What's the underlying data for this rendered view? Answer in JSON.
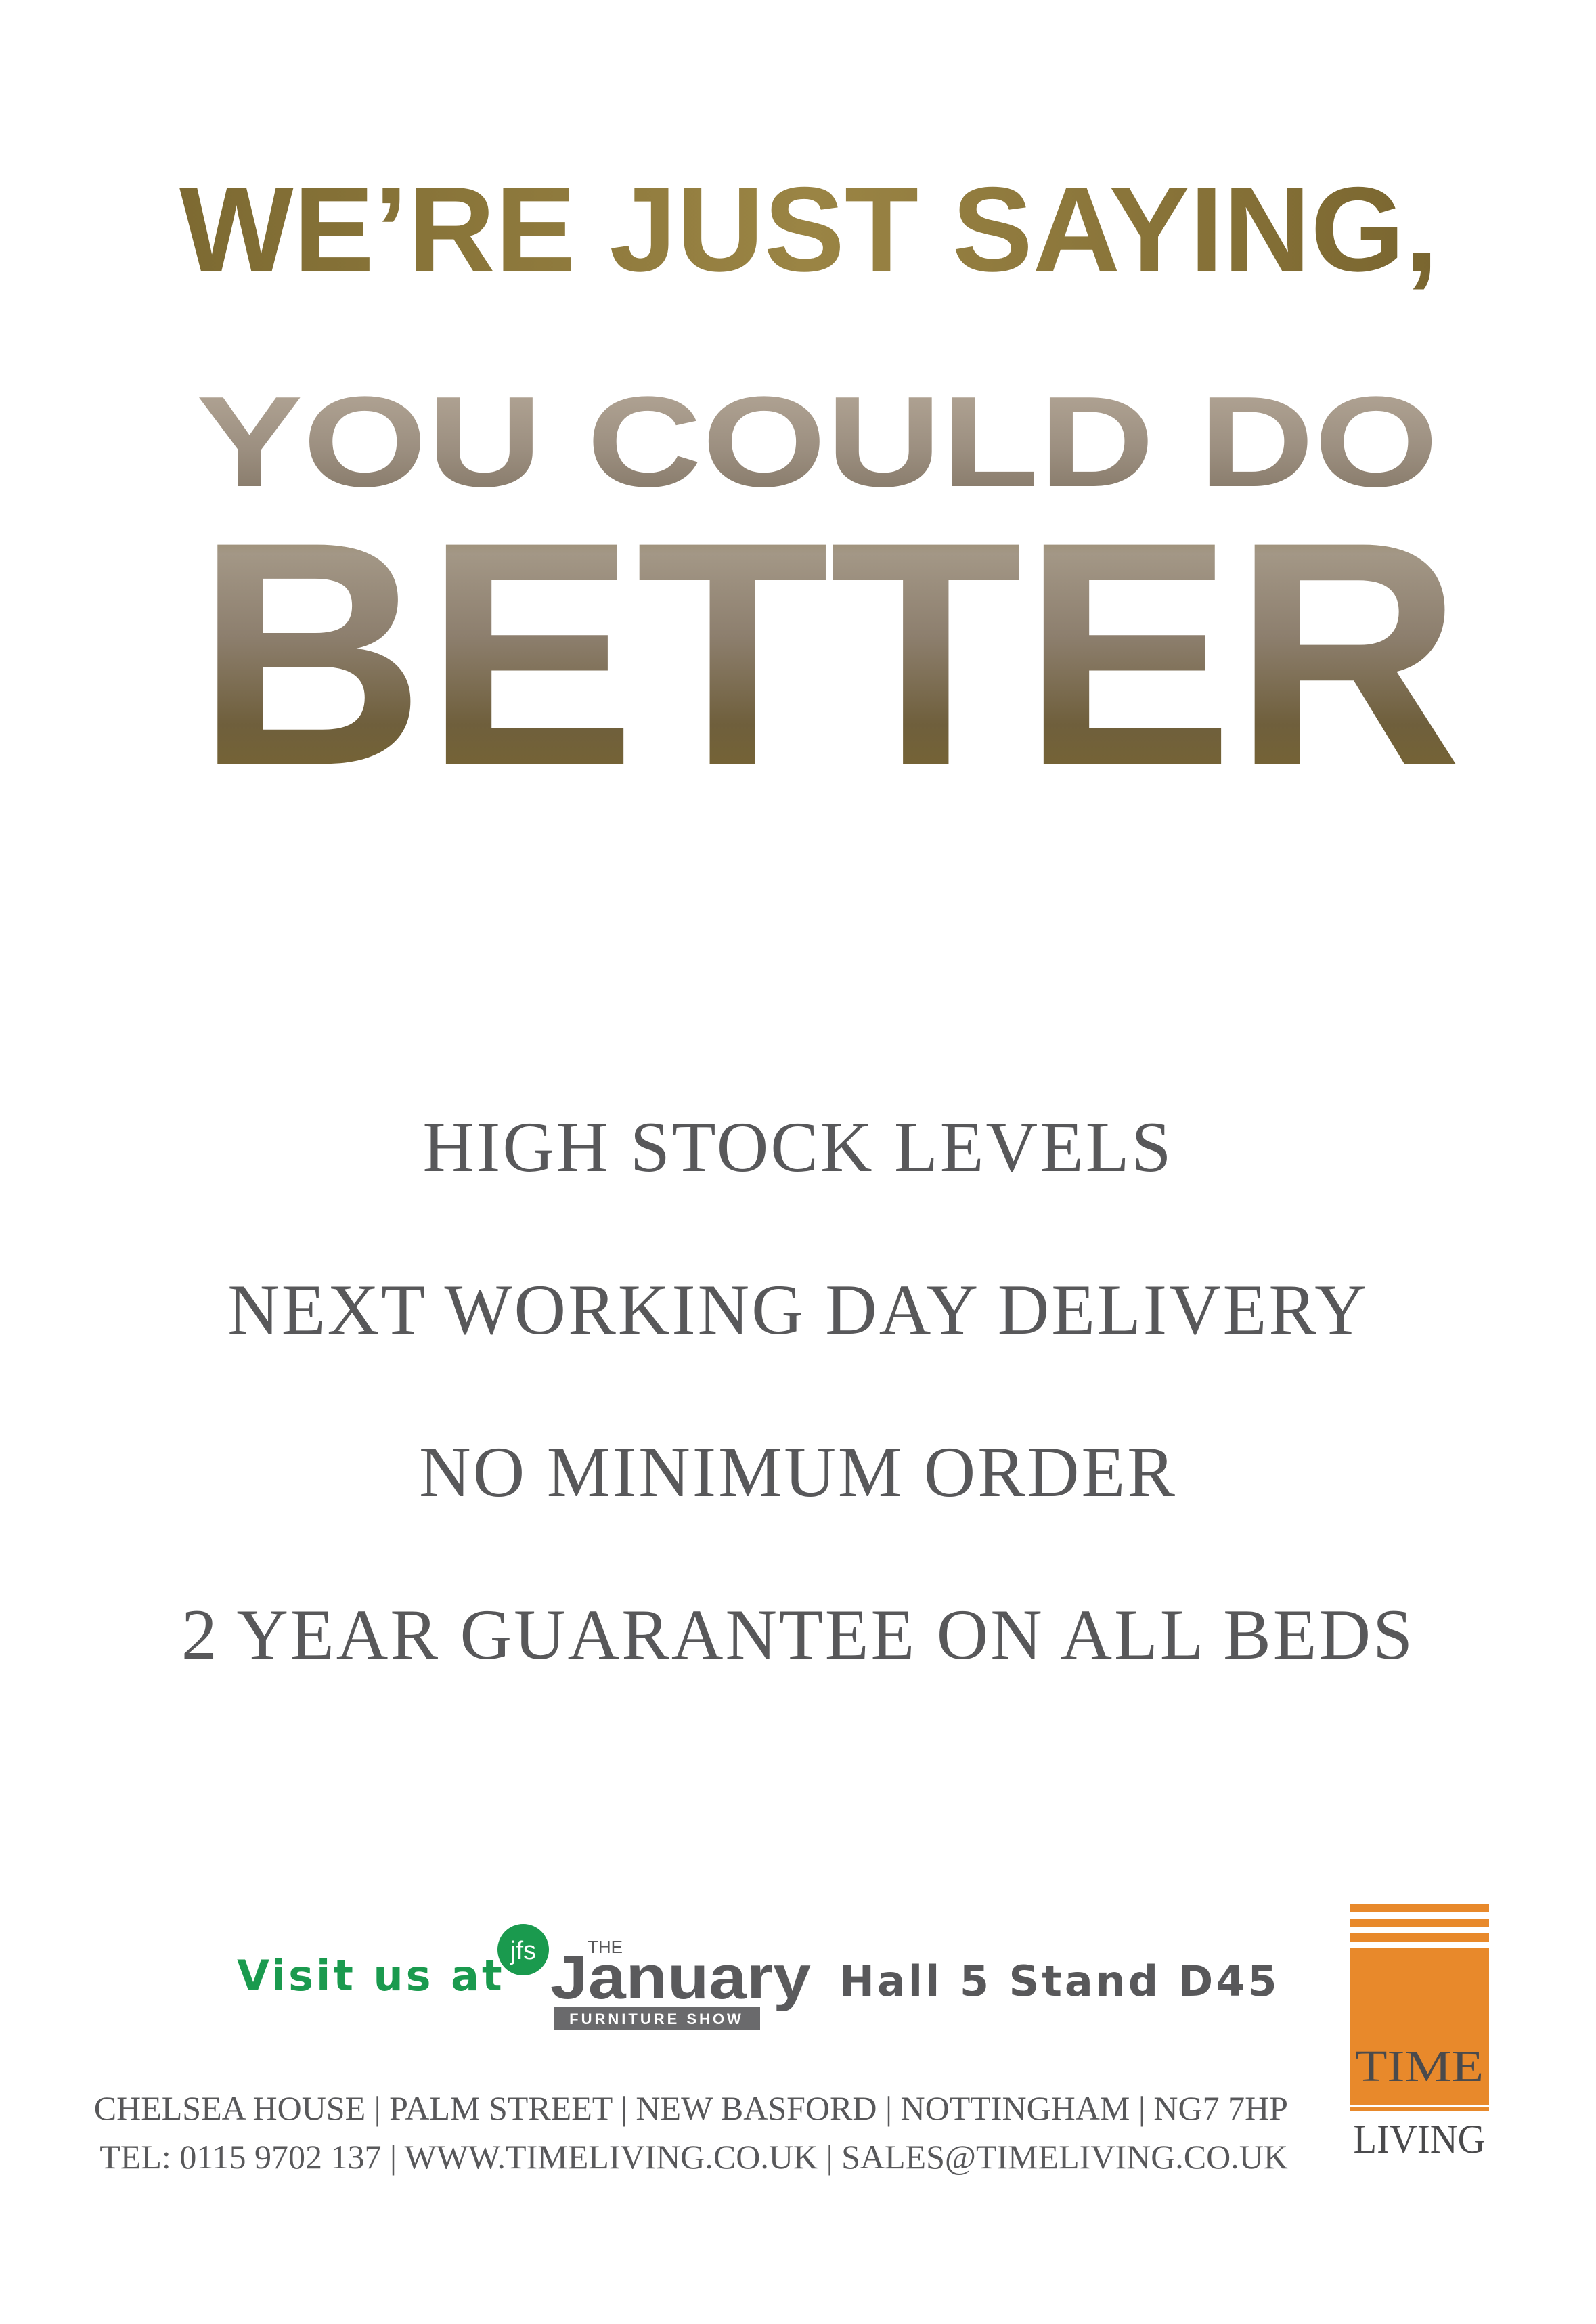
{
  "headline": {
    "line1": "WE’RE JUST SAYING,",
    "line2": "YOU COULD DO",
    "line3": "BETTER"
  },
  "features": [
    "HIGH STOCK LEVELS",
    "NEXT WORKING DAY DELIVERY",
    "NO MINIMUM ORDER",
    "2 YEAR GUARANTEE ON ALL BEDS"
  ],
  "visit": {
    "label": "Visit us at",
    "show_logo": {
      "badge": "jfs",
      "the": "THE",
      "name": "January",
      "sub": "FURNITURE SHOW"
    },
    "stand": "Hall 5 Stand D45"
  },
  "footer": {
    "address": "CHELSEA HOUSE | PALM STREET | NEW BASFORD | NOTTINGHAM | NG7 7HP",
    "contact": "TEL: 0115 9702 137  |  WWW.TIMELIVING.CO.UK | SALES@TIMELIVING.CO.UK"
  },
  "brand": {
    "line1": "TIME",
    "line2": "LIVING"
  },
  "colors": {
    "gold": "#8a7538",
    "text_gray": "#58585a",
    "green": "#1a9a4e",
    "orange": "#e8892b"
  }
}
